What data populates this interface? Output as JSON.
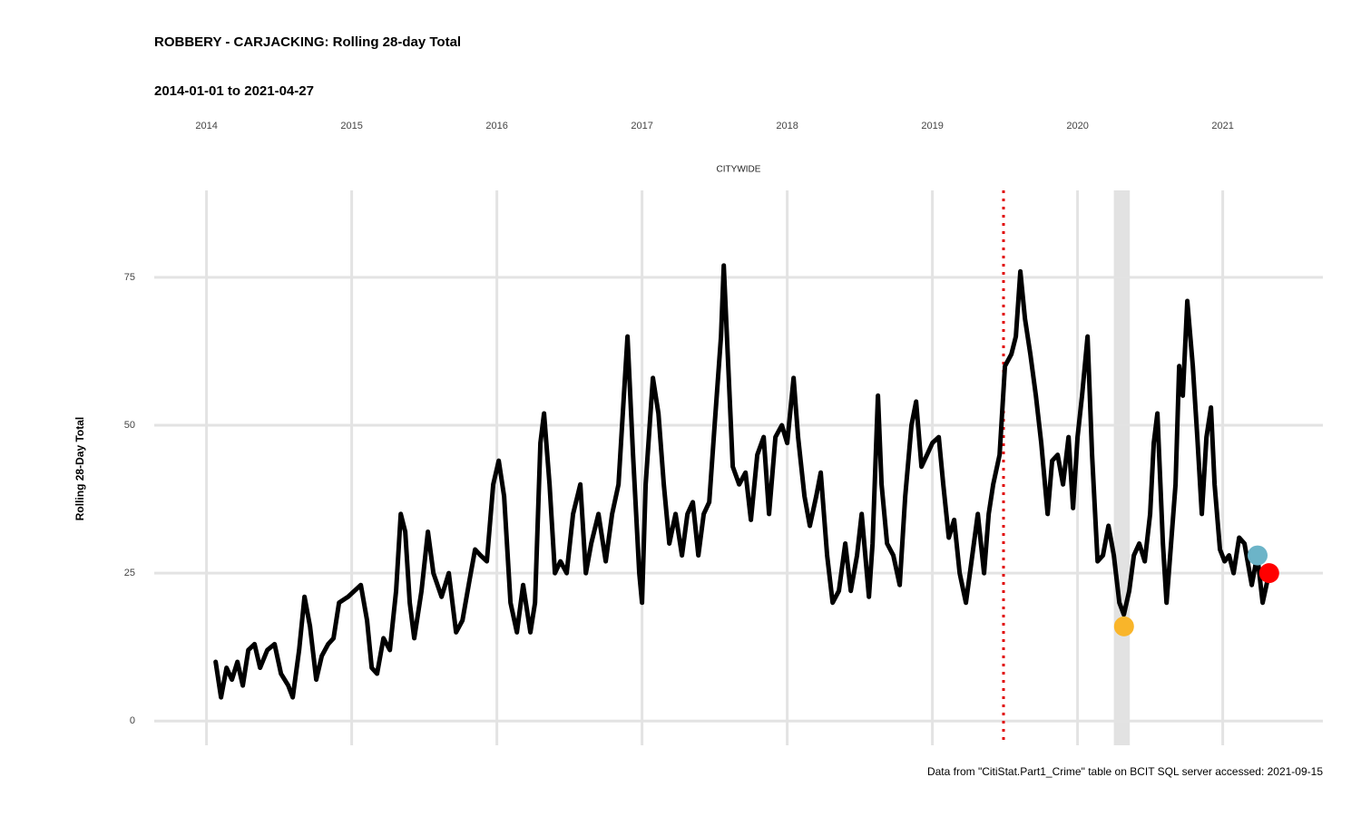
{
  "chart_data": {
    "type": "line",
    "title": "ROBBERY - CARJACKING: Rolling 28-day Total",
    "subtitle": "2014-01-01 to 2021-04-27",
    "facet_label": "CITYWIDE",
    "y_label": "Rolling 28-Day Total",
    "caption": "Data from \"CitiStat.Part1_Crime\" table on BCIT SQL server accessed: 2021-09-15",
    "xaxis_position": "top",
    "grid": true,
    "color": "#000000",
    "xlim": [
      2013.64,
      2021.69
    ],
    "ylim": [
      -4.1,
      89.7
    ],
    "xticks": [
      2014,
      2015,
      2016,
      2017,
      2018,
      2019,
      2020,
      2021
    ],
    "yticks": [
      0,
      25,
      50,
      75
    ],
    "x": [
      2014.063,
      2014.1,
      2014.138,
      2014.175,
      2014.213,
      2014.25,
      2014.288,
      2014.331,
      2014.369,
      2014.419,
      2014.469,
      2014.513,
      2014.563,
      2014.594,
      2014.638,
      2014.675,
      2014.713,
      2014.756,
      2014.794,
      2014.838,
      2014.875,
      2014.913,
      2014.975,
      2015.063,
      2015.106,
      2015.138,
      2015.175,
      2015.219,
      2015.263,
      2015.306,
      2015.338,
      2015.369,
      2015.4,
      2015.431,
      2015.481,
      2015.525,
      2015.563,
      2015.619,
      2015.669,
      2015.719,
      2015.763,
      2015.813,
      2015.85,
      2015.888,
      2015.931,
      2015.975,
      2016.013,
      2016.05,
      2016.094,
      2016.138,
      2016.181,
      2016.231,
      2016.263,
      2016.3,
      2016.325,
      2016.363,
      2016.4,
      2016.438,
      2016.481,
      2016.525,
      2016.575,
      2016.613,
      2016.65,
      2016.7,
      2016.75,
      2016.794,
      2016.838,
      2016.875,
      2016.9,
      2016.938,
      2016.981,
      2017.0,
      2017.025,
      2017.075,
      2017.113,
      2017.15,
      2017.188,
      2017.231,
      2017.275,
      2017.313,
      2017.35,
      2017.388,
      2017.425,
      2017.463,
      2017.5,
      2017.544,
      2017.563,
      2017.594,
      2017.625,
      2017.669,
      2017.713,
      2017.75,
      2017.794,
      2017.838,
      2017.875,
      2017.919,
      2017.963,
      2018.0,
      2018.044,
      2018.075,
      2018.119,
      2018.156,
      2018.2,
      2018.231,
      2018.275,
      2018.313,
      2018.356,
      2018.4,
      2018.438,
      2018.481,
      2018.513,
      2018.563,
      2018.588,
      2018.625,
      2018.65,
      2018.688,
      2018.731,
      2018.775,
      2018.813,
      2018.856,
      2018.888,
      2018.925,
      2018.963,
      2019.0,
      2019.044,
      2019.075,
      2019.113,
      2019.15,
      2019.188,
      2019.231,
      2019.275,
      2019.313,
      2019.356,
      2019.388,
      2019.419,
      2019.463,
      2019.5,
      2019.544,
      2019.575,
      2019.606,
      2019.638,
      2019.675,
      2019.713,
      2019.75,
      2019.794,
      2019.825,
      2019.863,
      2019.9,
      2019.938,
      2019.969,
      2020.0,
      2020.031,
      2020.069,
      2020.1,
      2020.138,
      2020.175,
      2020.213,
      2020.25,
      2020.288,
      2020.319,
      2020.356,
      2020.388,
      2020.425,
      2020.463,
      2020.5,
      2020.525,
      2020.55,
      2020.588,
      2020.613,
      2020.638,
      2020.675,
      2020.7,
      2020.725,
      2020.756,
      2020.794,
      2020.825,
      2020.856,
      2020.888,
      2020.919,
      2020.944,
      2020.981,
      2021.013,
      2021.044,
      2021.075,
      2021.113,
      2021.15,
      2021.2,
      2021.238,
      2021.275,
      2021.319
    ],
    "values": [
      10,
      4,
      9,
      7,
      10,
      6,
      12,
      13,
      9,
      12,
      13,
      8,
      6,
      4,
      12,
      21,
      16,
      7,
      11,
      13,
      14,
      20,
      21,
      23,
      17,
      9,
      8,
      14,
      12,
      22,
      35,
      32,
      20,
      14,
      22,
      32,
      25,
      21,
      25,
      15,
      17,
      24,
      29,
      28,
      27,
      40,
      44,
      38,
      20,
      15,
      23,
      15,
      20,
      47,
      52,
      40,
      25,
      27,
      25,
      35,
      40,
      25,
      30,
      35,
      27,
      35,
      40,
      55,
      65,
      45,
      25,
      20,
      40,
      58,
      52,
      40,
      30,
      35,
      28,
      35,
      37,
      28,
      35,
      37,
      50,
      65,
      77,
      60,
      43,
      40,
      42,
      34,
      45,
      48,
      35,
      48,
      50,
      47,
      58,
      48,
      38,
      33,
      38,
      42,
      28,
      20,
      22,
      30,
      22,
      28,
      35,
      21,
      30,
      55,
      40,
      30,
      28,
      23,
      38,
      50,
      54,
      43,
      45,
      47,
      48,
      40,
      31,
      34,
      25,
      20,
      28,
      35,
      25,
      35,
      40,
      45,
      60,
      62,
      65,
      76,
      68,
      62,
      55,
      47,
      35,
      44,
      45,
      40,
      48,
      36,
      48,
      55,
      65,
      45,
      27,
      28,
      33,
      28,
      20,
      18,
      22,
      28,
      30,
      27,
      35,
      47,
      52,
      30,
      20,
      28,
      40,
      60,
      55,
      71,
      60,
      48,
      35,
      48,
      53,
      40,
      29,
      27,
      28,
      25,
      31,
      30,
      23,
      28,
      20,
      25
    ],
    "reference_line": {
      "x": 2019.49,
      "color": "#e00000"
    },
    "shaded_band": {
      "xlim": [
        2020.25,
        2020.36
      ],
      "color": "#e2e2e2"
    },
    "markers": [
      {
        "x": 2020.32,
        "y": 16,
        "color": "#f9b52a"
      },
      {
        "x": 2021.24,
        "y": 28,
        "color": "#6cb4c8"
      },
      {
        "x": 2021.32,
        "y": 25,
        "color": "#ff0000"
      }
    ]
  }
}
